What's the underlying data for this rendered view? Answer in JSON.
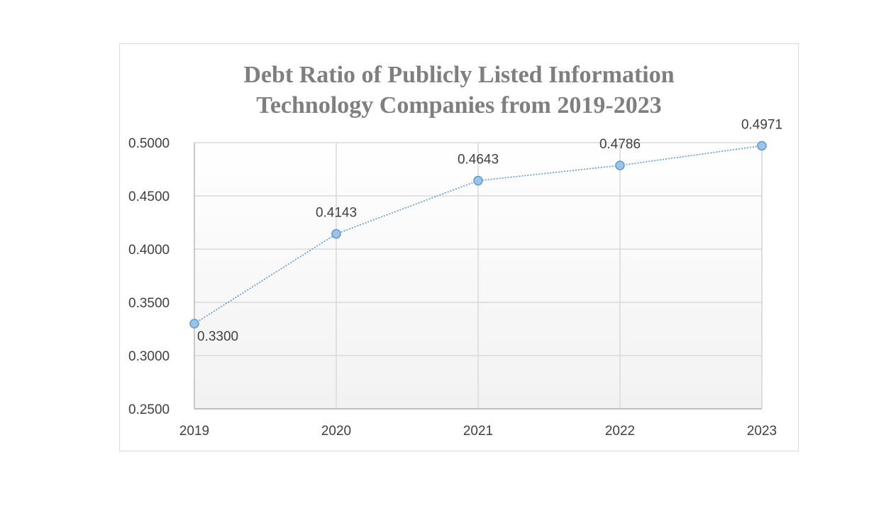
{
  "chart_data": {
    "type": "line",
    "title_lines": [
      "Debt Ratio of Publicly Listed Information",
      "Technology Companies from 2019-2023"
    ],
    "xlabel": "",
    "ylabel": "",
    "categories": [
      "2019",
      "2020",
      "2021",
      "2022",
      "2023"
    ],
    "series": [
      {
        "values": [
          0.33,
          0.4143,
          0.4643,
          0.4786,
          0.4971
        ],
        "data_labels": [
          "0.3300",
          "0.4143",
          "0.4643",
          "0.4786",
          "0.4971"
        ]
      }
    ],
    "ylim": [
      0.25,
      0.5
    ],
    "y_ticks": [
      "0.2500",
      "0.3000",
      "0.3500",
      "0.4000",
      "0.4500",
      "0.5000"
    ],
    "grid": true,
    "legend": "none",
    "line_style": "dotted",
    "colors": {
      "line": "#5b9bd5",
      "marker_fill": "#9dc3e6",
      "marker_stroke": "#5b9bd5",
      "grid": "#d9d9d9",
      "axis": "#bfbfbf",
      "title": "#7f7f7f",
      "text": "#404040"
    }
  }
}
